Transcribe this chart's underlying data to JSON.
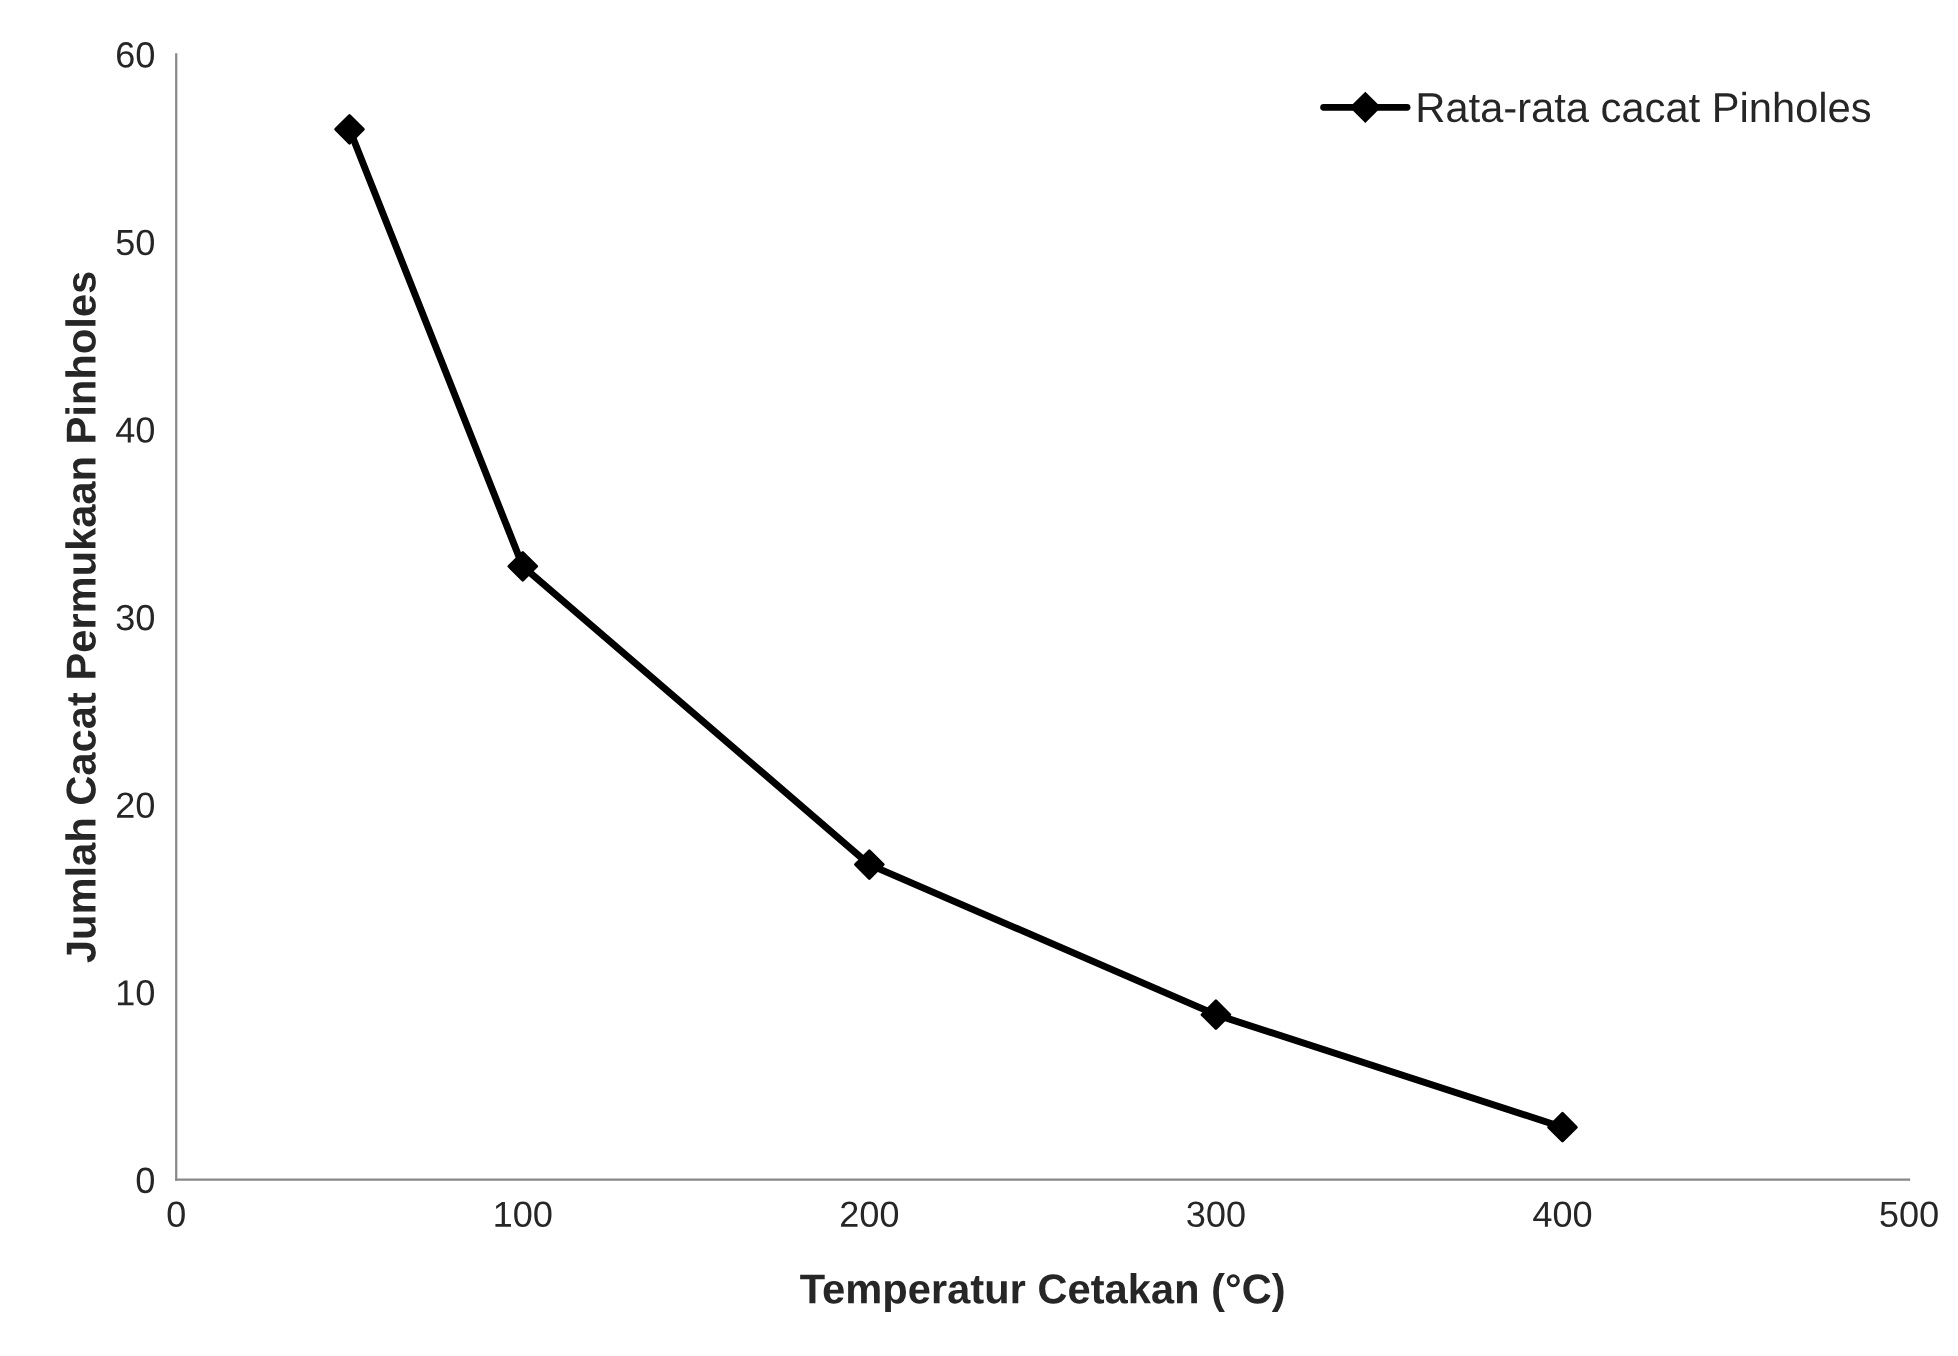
{
  "chart_data": {
    "type": "line",
    "xlabel": "Temperatur Cetakan (°C)",
    "ylabel": "Jumlah Cacat Permukaan Pinholes",
    "x": [
      50,
      100,
      200,
      300,
      400
    ],
    "series": [
      {
        "name": "Rata-rata cacat Pinholes",
        "color": "#000000",
        "values": [
          56.0,
          32.7,
          16.8,
          8.8,
          2.8
        ]
      }
    ],
    "xlim": [
      0,
      500
    ],
    "xticks": [
      0,
      100,
      200,
      300,
      400,
      500
    ],
    "ylim": [
      0,
      60
    ],
    "yticks": [
      0,
      10,
      20,
      30,
      40,
      50,
      60
    ],
    "marker": "diamond",
    "line_style": "solid",
    "grid": false,
    "legend": "top right"
  }
}
